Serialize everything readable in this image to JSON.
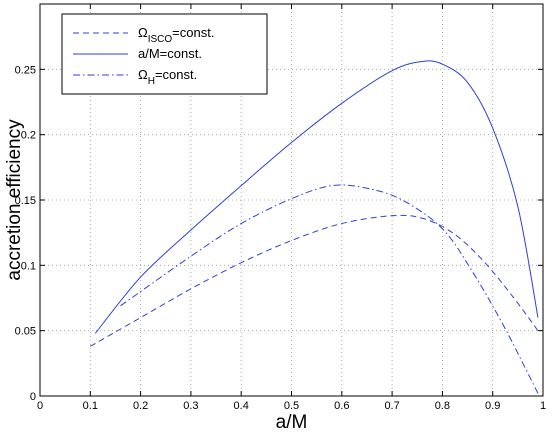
{
  "chart_data": {
    "type": "line",
    "title": "",
    "xlabel": "a/M",
    "ylabel": "accretion efficiency",
    "xlim": [
      0,
      1
    ],
    "ylim": [
      0,
      0.3
    ],
    "xticks": [
      "0",
      "0.1",
      "0.2",
      "0.3",
      "0.4",
      "0.5",
      "0.6",
      "0.7",
      "0.8",
      "0.9",
      "1"
    ],
    "yticks": [
      "0",
      "0.05",
      "0.1",
      "0.15",
      "0.2",
      "0.25"
    ],
    "grid": true,
    "legend_position": "top-left",
    "color": "#2f3fd9",
    "series": [
      {
        "legend_main": "Ω",
        "legend_sub": "ISCO",
        "legend_rest": "=const.",
        "style": "dashed",
        "x": [
          0.1,
          0.2,
          0.3,
          0.4,
          0.5,
          0.6,
          0.7,
          0.76,
          0.82,
          0.88,
          0.94,
          0.99
        ],
        "y": [
          0.038,
          0.06,
          0.082,
          0.102,
          0.119,
          0.132,
          0.138,
          0.136,
          0.125,
          0.104,
          0.076,
          0.05
        ]
      },
      {
        "legend_main": "a/M=const.",
        "legend_sub": "",
        "legend_rest": "",
        "style": "solid",
        "x": [
          0.11,
          0.2,
          0.3,
          0.4,
          0.5,
          0.6,
          0.7,
          0.76,
          0.8,
          0.85,
          0.9,
          0.95,
          0.99
        ],
        "y": [
          0.048,
          0.091,
          0.127,
          0.161,
          0.194,
          0.224,
          0.249,
          0.256,
          0.254,
          0.24,
          0.205,
          0.145,
          0.06
        ]
      },
      {
        "legend_main": "Ω",
        "legend_sub": "H",
        "legend_rest": "=const.",
        "style": "dashdot",
        "x": [
          0.16,
          0.3,
          0.4,
          0.5,
          0.58,
          0.65,
          0.72,
          0.8,
          0.86,
          0.92,
          0.96,
          0.99
        ],
        "y": [
          0.069,
          0.107,
          0.132,
          0.151,
          0.161,
          0.159,
          0.15,
          0.128,
          0.095,
          0.055,
          0.025,
          0.002
        ]
      }
    ]
  }
}
